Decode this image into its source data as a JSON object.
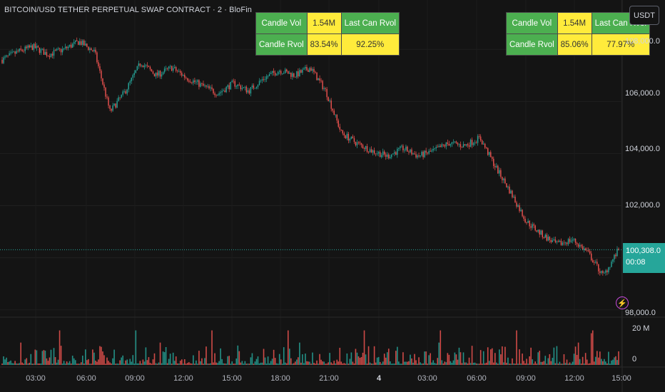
{
  "symbol_title": "BITCOIN/USD TETHER PERPETUAL SWAP CONTRACT · 2 · BloFin",
  "currency_button": "USDT",
  "rvol_tables": [
    {
      "candle_vol_label": "Candle Vol",
      "candle_vol_value": "1.54M",
      "last_can_rvol_label": "Last Can Rvol",
      "candle_rvol_label": "Candle Rvol",
      "candle_rvol_value": "83.54%",
      "last_can_rvol_value": "92.25%"
    },
    {
      "candle_vol_label": "Candle Vol",
      "candle_vol_value": "1.54M",
      "last_can_rvol_label": "Last Can Rvol",
      "candle_rvol_label": "Candle Rvol",
      "candle_rvol_value": "85.06%",
      "last_can_rvol_value": "77.97%"
    }
  ],
  "price_axis": {
    "ticks": [
      "108,000.0",
      "106,000.0",
      "104,000.0",
      "102,000.0",
      "98,000.0"
    ]
  },
  "last_price": {
    "value": "100,308.0",
    "countdown": "00:08"
  },
  "volume_axis": {
    "ticks": [
      "20 M",
      "0"
    ]
  },
  "time_axis": {
    "ticks": [
      "03:00",
      "06:00",
      "09:00",
      "12:00",
      "15:00",
      "18:00",
      "21:00",
      "4",
      "03:00",
      "06:00",
      "09:00",
      "12:00",
      "15:00"
    ]
  },
  "colors": {
    "up": "#26a69a",
    "down": "#ef5350",
    "background": "#141414",
    "table_green": "#4caf50",
    "table_yellow": "#ffeb3b",
    "alert": "#c44ad8"
  },
  "icons": {
    "alert": "lightning-alert-icon"
  },
  "chart_data": {
    "type": "candlestick",
    "title": "BITCOIN/USD TETHER PERPETUAL SWAP CONTRACT · 2 · BloFin",
    "x": [
      "03:00",
      "06:00",
      "09:00",
      "12:00",
      "15:00",
      "18:00",
      "21:00",
      "4",
      "03:00",
      "06:00",
      "09:00",
      "12:00",
      "15:00"
    ],
    "close_path": [
      107600,
      107900,
      108100,
      107800,
      108000,
      108300,
      107900,
      105600,
      106400,
      107500,
      107000,
      107300,
      106900,
      106600,
      106300,
      106700,
      106400,
      106900,
      107200,
      107000,
      107300,
      106400,
      104800,
      104400,
      104100,
      103900,
      104200,
      103900,
      104100,
      104400,
      104300,
      104600,
      103500,
      102500,
      101400,
      100900,
      100500,
      100700,
      100200,
      99300,
      100308
    ],
    "volume_range": [
      0,
      20000000
    ],
    "price_range": [
      98000,
      108000
    ],
    "last_price": 100308
  }
}
